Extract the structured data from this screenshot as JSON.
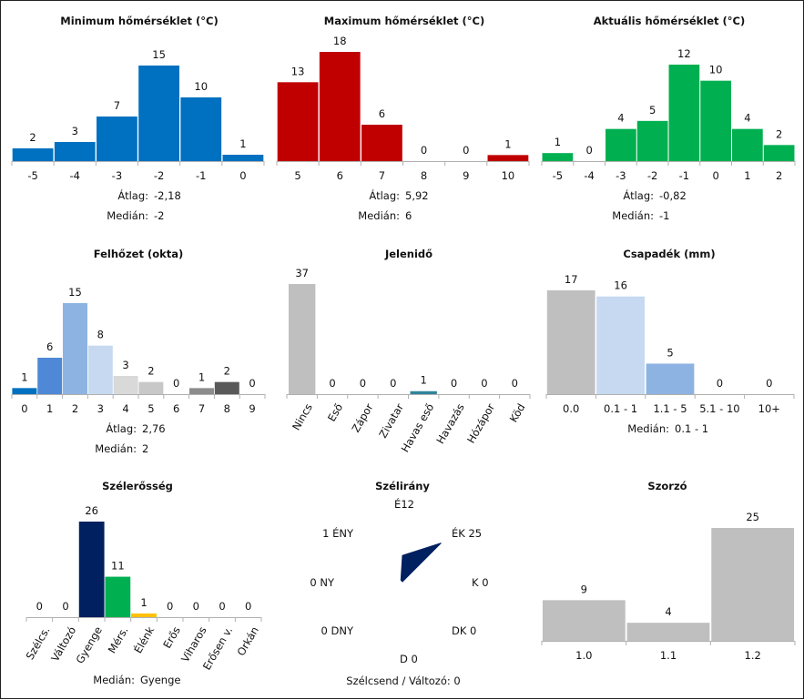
{
  "chart_data": [
    {
      "id": "min",
      "type": "bar",
      "title": "Minimum hőmérséklet (°C)",
      "categories": [
        "-5",
        "-4",
        "-3",
        "-2",
        "-1",
        "0"
      ],
      "values": [
        2,
        3,
        7,
        15,
        10,
        1
      ],
      "colors": [
        "#0070c0"
      ],
      "stats": [
        {
          "label": "Átlag:",
          "value": "-2,18"
        },
        {
          "label": "Medián:",
          "value": "-2"
        }
      ]
    },
    {
      "id": "max",
      "type": "bar",
      "title": "Maximum hőmérséklet (°C)",
      "categories": [
        "5",
        "6",
        "7",
        "8",
        "9",
        "10"
      ],
      "values": [
        13,
        18,
        6,
        0,
        0,
        1
      ],
      "colors": [
        "#c00000"
      ],
      "stats": [
        {
          "label": "Átlag:",
          "value": "5,92"
        },
        {
          "label": "Medián:",
          "value": "6"
        }
      ]
    },
    {
      "id": "act",
      "type": "bar",
      "title": "Aktuális hőmérséklet (°C)",
      "categories": [
        "-5",
        "-4",
        "-3",
        "-2",
        "-1",
        "0",
        "1",
        "2"
      ],
      "values": [
        1,
        0,
        4,
        5,
        12,
        10,
        4,
        2
      ],
      "colors": [
        "#00b050"
      ],
      "stats": [
        {
          "label": "Átlag:",
          "value": "-0,82"
        },
        {
          "label": "Medián:",
          "value": "-1"
        }
      ]
    },
    {
      "id": "cloud",
      "type": "bar",
      "title": "Felhőzet (okta)",
      "categories": [
        "0",
        "1",
        "2",
        "3",
        "4",
        "5",
        "6",
        "7",
        "8",
        "9"
      ],
      "values": [
        1,
        6,
        15,
        8,
        3,
        2,
        0,
        1,
        2,
        0
      ],
      "colors": [
        "#0070c0",
        "#4f88d6",
        "#8db3e2",
        "#c6d9f1",
        "#d9d9d9",
        "#c8c8c8",
        "#a6a6a6",
        "#8c8c8c",
        "#595959",
        "#404040"
      ],
      "stats": [
        {
          "label": "Átlag:",
          "value": "2,76"
        },
        {
          "label": "Medián:",
          "value": "2"
        }
      ]
    },
    {
      "id": "wx",
      "type": "bar",
      "title": "Jelenidő",
      "categories": [
        "Nincs",
        "Eső",
        "Zápor",
        "Zivatar",
        "Havas eső",
        "Havazás",
        "Hózápor",
        "Köd"
      ],
      "values": [
        37,
        0,
        0,
        0,
        1,
        0,
        0,
        0
      ],
      "colors": [
        "#bfbfbf",
        "#bfbfbf",
        "#bfbfbf",
        "#bfbfbf",
        "#31849b",
        "#bfbfbf",
        "#bfbfbf",
        "#bfbfbf"
      ],
      "stats": []
    },
    {
      "id": "precip",
      "type": "bar",
      "title": "Csapadék (mm)",
      "categories": [
        "0.0",
        "0.1 - 1",
        "1.1 - 5",
        "5.1 - 10",
        "10+"
      ],
      "values": [
        17,
        16,
        5,
        0,
        0
      ],
      "colors": [
        "#bfbfbf",
        "#c6d9f1",
        "#8db3e2",
        "#548dd4",
        "#1f497d"
      ],
      "stats": [
        {
          "label": "Medián:",
          "value": "0.1 - 1"
        }
      ]
    },
    {
      "id": "wind",
      "type": "bar",
      "title": "Szélerősség",
      "categories": [
        "Szélcs.",
        "Változó",
        "Gyenge",
        "Mérs.",
        "Élénk",
        "Erős",
        "Viharos",
        "Erősen v.",
        "Orkán"
      ],
      "values": [
        0,
        0,
        26,
        11,
        1,
        0,
        0,
        0,
        0
      ],
      "colors": [
        "#bfbfbf",
        "#bfbfbf",
        "#002060",
        "#00b050",
        "#ffc000",
        "#ff6600",
        "#c00000",
        "#7030a0",
        "#000000"
      ],
      "stats": [
        {
          "label": "Medián:",
          "value": "Gyenge"
        }
      ]
    },
    {
      "id": "dir",
      "type": "radar",
      "title": "Szélirány",
      "directions": [
        "É",
        "ÉK",
        "K",
        "DK",
        "D",
        "DNY",
        "NY",
        "ÉNY"
      ],
      "values": [
        12,
        25,
        0,
        0,
        0,
        0,
        0,
        1
      ],
      "color": "#002060",
      "footer": "Szélcsend / Változó: 0"
    },
    {
      "id": "mult",
      "type": "bar",
      "title": "Szorzó",
      "categories": [
        "1.0",
        "1.1",
        "1.2"
      ],
      "values": [
        9,
        4,
        25
      ],
      "colors": [
        "#bfbfbf"
      ],
      "stats": []
    }
  ]
}
